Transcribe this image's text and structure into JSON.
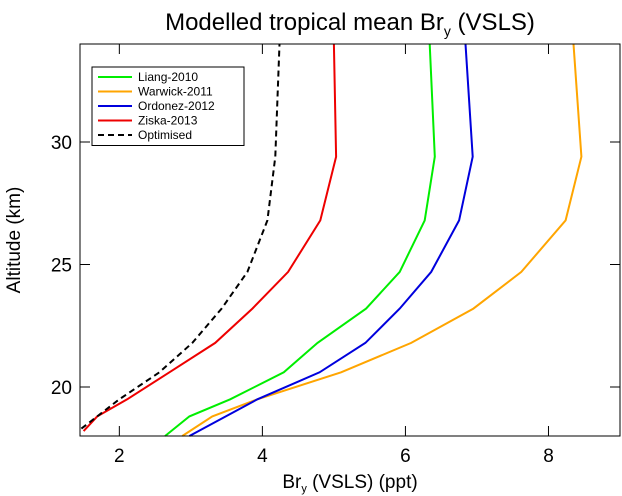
{
  "chart_data": {
    "type": "line",
    "title_parts": [
      "Modelled tropical mean Br",
      "y",
      " (VSLS)"
    ],
    "xlabel_parts": [
      "Br",
      "y",
      " (VSLS) (ppt)"
    ],
    "ylabel": "Altitude (km)",
    "xlim": [
      1.45,
      9
    ],
    "xticks": [
      2,
      4,
      6,
      8
    ],
    "ylim": [
      18,
      34
    ],
    "yticks": [
      20,
      25,
      30
    ],
    "legend": "upper left",
    "series": [
      {
        "name": "Liang-2010",
        "color": "#00ee00",
        "dash": false,
        "x": [
          2.64,
          2.98,
          3.55,
          4.3,
          4.77,
          5.45,
          5.92,
          6.27,
          6.41,
          6.34
        ],
        "values": [
          18,
          18.8,
          19.5,
          20.6,
          21.8,
          23.2,
          24.7,
          26.8,
          29.4,
          34
        ]
      },
      {
        "name": "Warwick-2011",
        "color": "#ffa500",
        "dash": false,
        "x": [
          2.88,
          3.3,
          3.93,
          5.1,
          6.08,
          6.95,
          7.62,
          8.24,
          8.46,
          8.35
        ],
        "values": [
          18,
          18.8,
          19.5,
          20.6,
          21.8,
          23.2,
          24.7,
          26.8,
          29.4,
          34
        ]
      },
      {
        "name": "Ordonez-2012",
        "color": "#0000dd",
        "dash": false,
        "x": [
          2.98,
          3.93,
          4.8,
          5.44,
          5.92,
          6.36,
          6.75,
          6.94,
          6.84
        ],
        "values": [
          18,
          19.5,
          20.6,
          21.8,
          23.2,
          24.7,
          26.8,
          29.4,
          34
        ]
      },
      {
        "name": "Ziska-2013",
        "color": "#ee0000",
        "dash": false,
        "x": [
          1.5,
          1.69,
          2.11,
          2.7,
          3.34,
          3.86,
          4.36,
          4.81,
          5.03,
          5.0
        ],
        "values": [
          18.2,
          18.8,
          19.5,
          20.6,
          21.8,
          23.2,
          24.7,
          26.8,
          29.4,
          34
        ]
      },
      {
        "name": "Optimised",
        "color": "#000000",
        "dash": true,
        "x": [
          1.47,
          1.69,
          2.0,
          2.56,
          3.02,
          3.43,
          3.79,
          4.07,
          4.18,
          4.24
        ],
        "values": [
          18.3,
          18.8,
          19.5,
          20.6,
          21.8,
          23.2,
          24.7,
          26.8,
          29.4,
          34
        ]
      }
    ]
  }
}
